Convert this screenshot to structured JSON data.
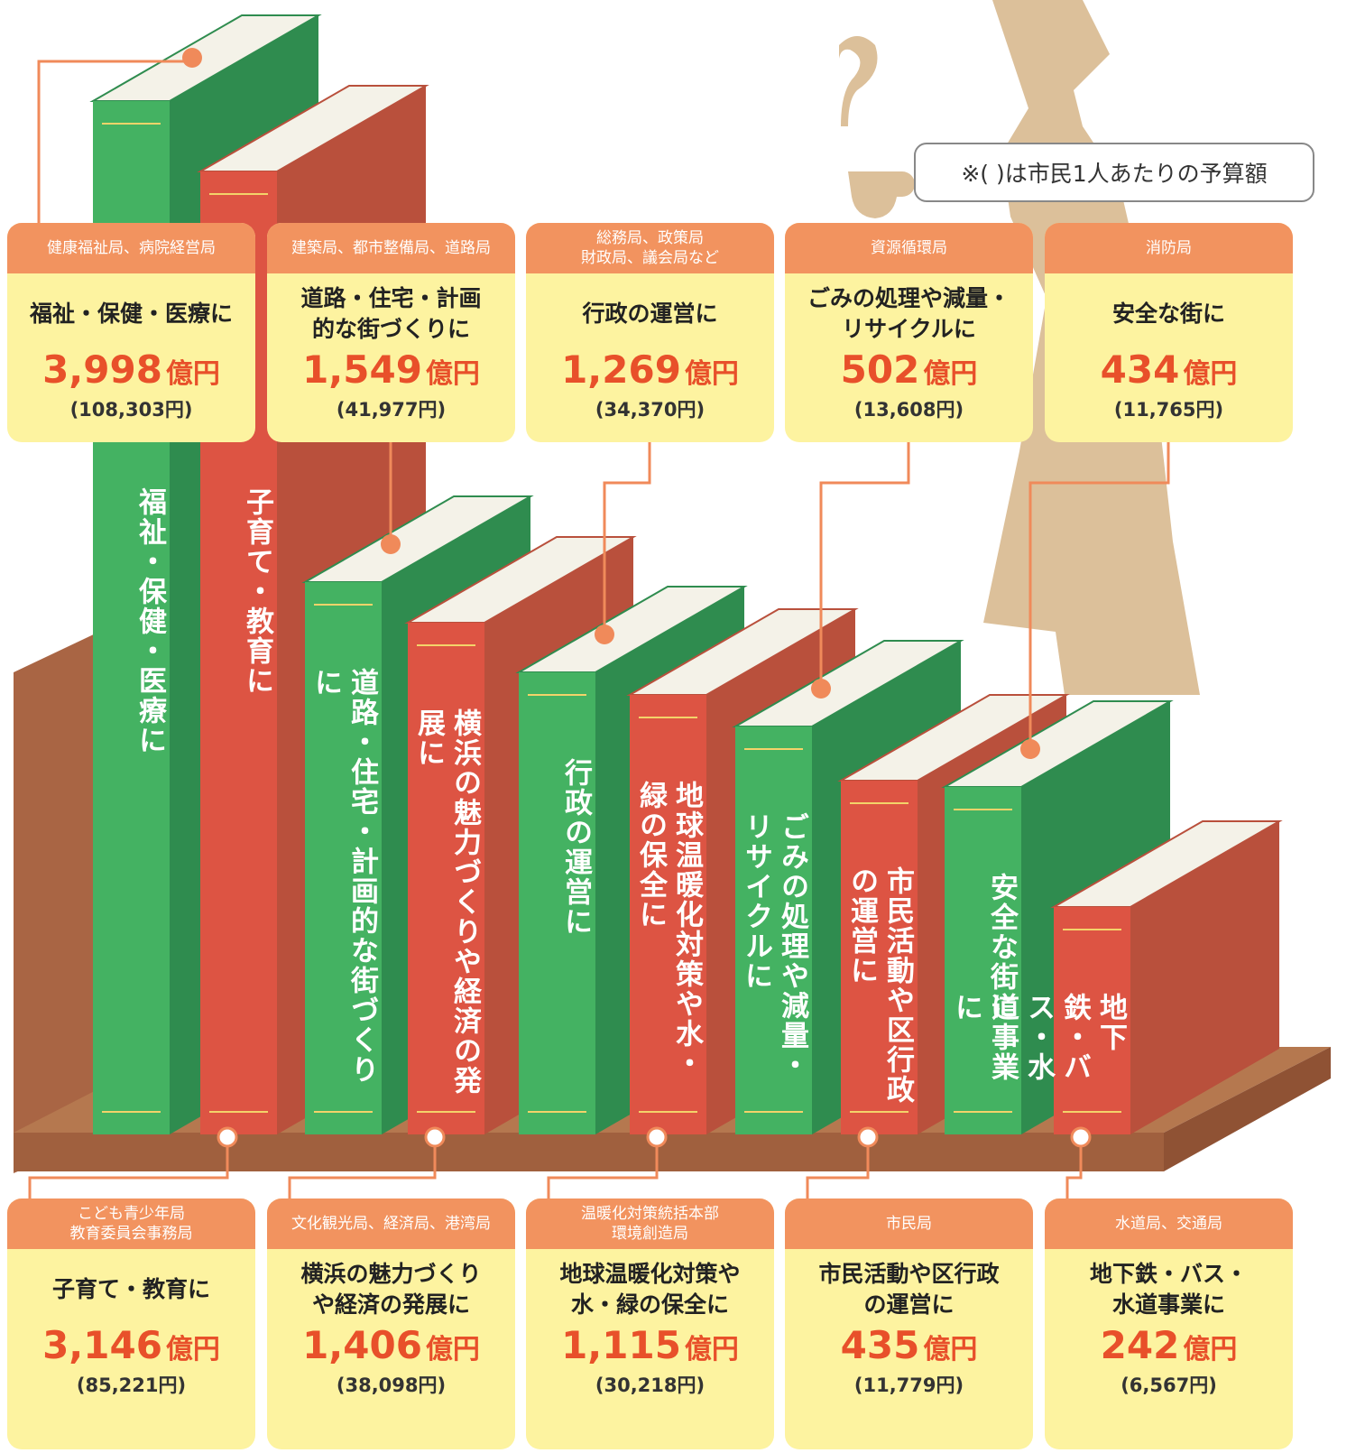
{
  "note": "※( )は市民1人あたりの予算額",
  "items": [
    {
      "department": "健康福祉局、病院経営局",
      "heading": "福祉・保健・医療に",
      "amount": "3,998",
      "unit": "億円",
      "per_capita": "(108,303円)",
      "spine": "福祉・保健・医療に"
    },
    {
      "department": "こども青少年局\n教育委員会事務局",
      "heading": "子育て・教育に",
      "amount": "3,146",
      "unit": "億円",
      "per_capita": "(85,221円)",
      "spine": "子育て・教育に"
    },
    {
      "department": "建築局、都市整備局、道路局",
      "heading": "道路・住宅・計画\n的な街づくりに",
      "amount": "1,549",
      "unit": "億円",
      "per_capita": "(41,977円)",
      "spine": "道路・住宅・計画的な街づくりに"
    },
    {
      "department": "文化観光局、経済局、港湾局",
      "heading": "横浜の魅力づくり\nや経済の発展に",
      "amount": "1,406",
      "unit": "億円",
      "per_capita": "(38,098円)",
      "spine": "横浜の魅力づくりや経済の発展に"
    },
    {
      "department": "総務局、政策局\n財政局、議会局など",
      "heading": "行政の運営に",
      "amount": "1,269",
      "unit": "億円",
      "per_capita": "(34,370円)",
      "spine": "行政の運営に"
    },
    {
      "department": "温暖化対策統括本部\n環境創造局",
      "heading": "地球温暖化対策や\n水・緑の保全に",
      "amount": "1,115",
      "unit": "億円",
      "per_capita": "(30,218円)",
      "spine": "地球温暖化対策や水・緑の保全に"
    },
    {
      "department": "資源循環局",
      "heading": "ごみの処理や減量・\nリサイクルに",
      "amount": "502",
      "unit": "億円",
      "per_capita": "(13,608円)",
      "spine": "ごみの処理や減量・リサイクルに"
    },
    {
      "department": "市民局",
      "heading": "市民活動や区行政\nの運営に",
      "amount": "435",
      "unit": "億円",
      "per_capita": "(11,779円)",
      "spine": "市民活動や区行政の運営に"
    },
    {
      "department": "消防局",
      "heading": "安全な街に",
      "amount": "434",
      "unit": "億円",
      "per_capita": "(11,765円)",
      "spine": "安全な街に"
    },
    {
      "department": "水道局、交通局",
      "heading": "地下鉄・バス・\n水道事業に",
      "amount": "242",
      "unit": "億円",
      "per_capita": "(6,567円)",
      "spine": "地下鉄・バス・水道事業に"
    }
  ]
}
